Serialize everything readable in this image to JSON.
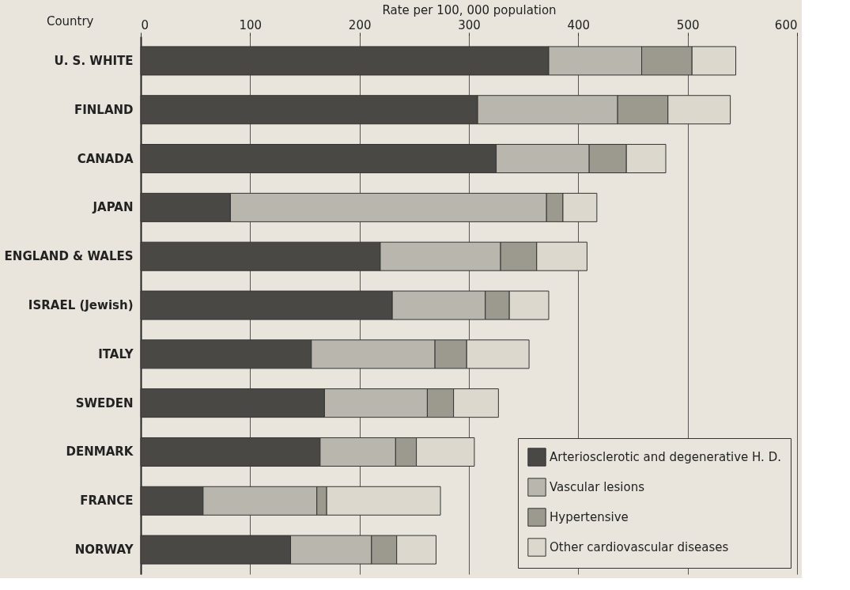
{
  "chart_data": {
    "type": "bar",
    "orientation": "horizontal",
    "stacked": true,
    "xlabel": "Rate per 100, 000 population",
    "ylabel": "Country",
    "categories": [
      "U. S. WHITE",
      "FINLAND",
      "CANADA",
      "JAPAN",
      "ENGLAND & WALES",
      "ISRAEL (Jewish)",
      "ITALY",
      "SWEDEN",
      "DENMARK",
      "FRANCE",
      "NORWAY"
    ],
    "series": [
      {
        "name": "Arteriosclerotic and degenerative H. D.",
        "color": "#4a4845",
        "values": [
          373,
          308,
          325,
          82,
          219,
          230,
          156,
          168,
          164,
          57,
          137
        ]
      },
      {
        "name": "Vascular lesions",
        "color": "#b9b6ae",
        "values": [
          85,
          128,
          85,
          289,
          110,
          85,
          113,
          94,
          69,
          104,
          74
        ]
      },
      {
        "name": "Hypertensive",
        "color": "#9c998f",
        "values": [
          46,
          46,
          34,
          15,
          33,
          22,
          29,
          24,
          19,
          9,
          23
        ]
      },
      {
        "name": "Other cardiovascular diseases",
        "color": "#dcd8ce",
        "values": [
          40,
          57,
          36,
          31,
          46,
          36,
          57,
          41,
          53,
          104,
          36
        ]
      }
    ],
    "xlim": [
      0,
      600
    ],
    "xticks": [
      0,
      100,
      200,
      300,
      400,
      500,
      600
    ],
    "grid": "x",
    "legend": "bottom right"
  }
}
